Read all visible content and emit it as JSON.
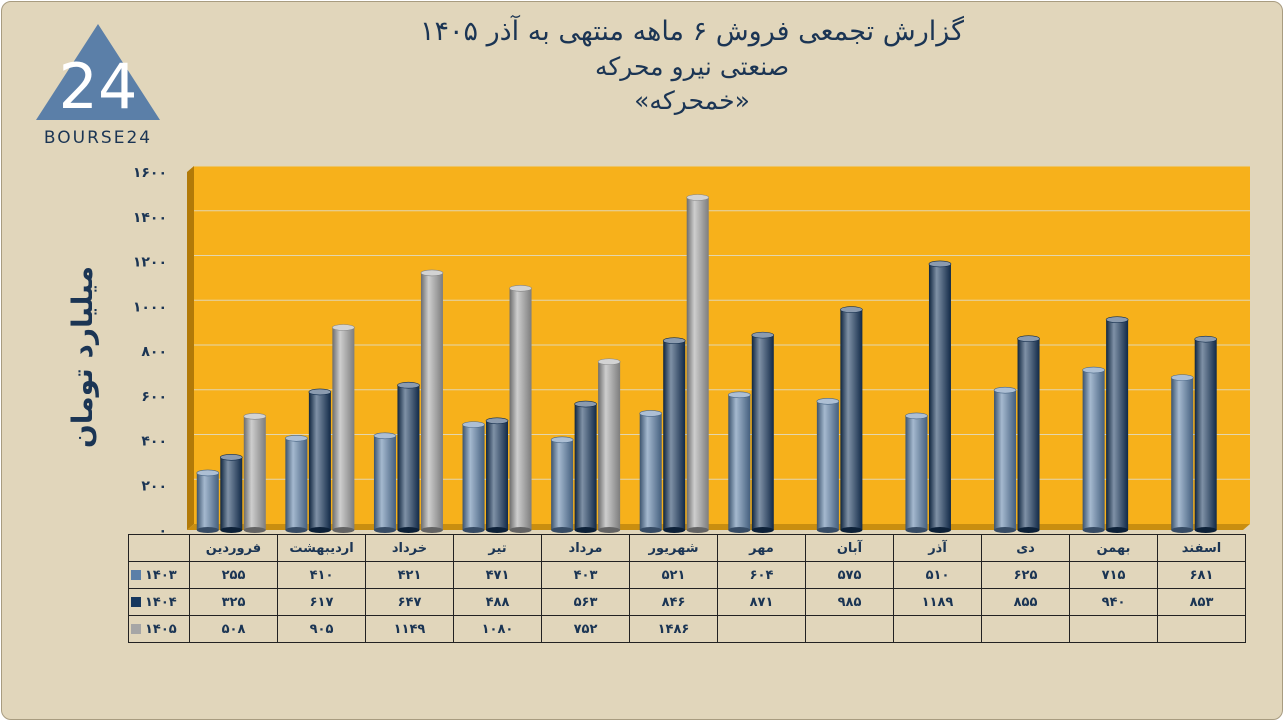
{
  "header": {
    "title_line1": "گزارش تجمعی فروش ۶ ماهه منتهی به آذر ۱۴۰۵",
    "title_line2": "صنعتی نیرو محرکه",
    "title_line3": "«خمحرکه»"
  },
  "logo": {
    "number": "24",
    "text": "BOURSE24"
  },
  "colors": {
    "background": "#e1d6bb",
    "plot": "#f7b11b",
    "s1403": "#5b7fa8",
    "s1404": "#16375e",
    "s1405": "#a6a6a6",
    "text": "#1b3554"
  },
  "chart_data": {
    "type": "bar",
    "title": "گزارش تجمعی فروش ۶ ماهه منتهی به آذر ۱۴۰۵",
    "ylabel": "میلیارد تومان",
    "ylim": [
      0,
      1600
    ],
    "yticks": [
      0,
      200,
      400,
      600,
      800,
      1000,
      1200,
      1400,
      1600
    ],
    "ytick_labels": [
      "۰",
      "۲۰۰",
      "۴۰۰",
      "۶۰۰",
      "۸۰۰",
      "۱۰۰۰",
      "۱۲۰۰",
      "۱۴۰۰",
      "۱۶۰۰"
    ],
    "grid": true,
    "categories": [
      "فروردین",
      "اردیبهشت",
      "خرداد",
      "تیر",
      "مرداد",
      "شهریور",
      "مهر",
      "آبان",
      "آذر",
      "دی",
      "بهمن",
      "اسفند"
    ],
    "series": [
      {
        "name": "۱۴۰۳",
        "values": [
          255,
          410,
          421,
          471,
          403,
          521,
          604,
          575,
          510,
          625,
          715,
          681
        ],
        "labels": [
          "۲۵۵",
          "۴۱۰",
          "۴۲۱",
          "۴۷۱",
          "۴۰۳",
          "۵۲۱",
          "۶۰۴",
          "۵۷۵",
          "۵۱۰",
          "۶۲۵",
          "۷۱۵",
          "۶۸۱"
        ]
      },
      {
        "name": "۱۴۰۴",
        "values": [
          325,
          617,
          647,
          488,
          563,
          846,
          871,
          985,
          1189,
          855,
          940,
          853
        ],
        "labels": [
          "۳۲۵",
          "۶۱۷",
          "۶۴۷",
          "۴۸۸",
          "۵۶۳",
          "۸۴۶",
          "۸۷۱",
          "۹۸۵",
          "۱۱۸۹",
          "۸۵۵",
          "۹۴۰",
          "۸۵۳"
        ]
      },
      {
        "name": "۱۴۰۵",
        "values": [
          508,
          905,
          1149,
          1080,
          752,
          1486,
          null,
          null,
          null,
          null,
          null,
          null
        ],
        "labels": [
          "۵۰۸",
          "۹۰۵",
          "۱۱۴۹",
          "۱۰۸۰",
          "۷۵۲",
          "۱۴۸۶",
          "",
          "",
          "",
          "",
          "",
          ""
        ]
      }
    ]
  }
}
